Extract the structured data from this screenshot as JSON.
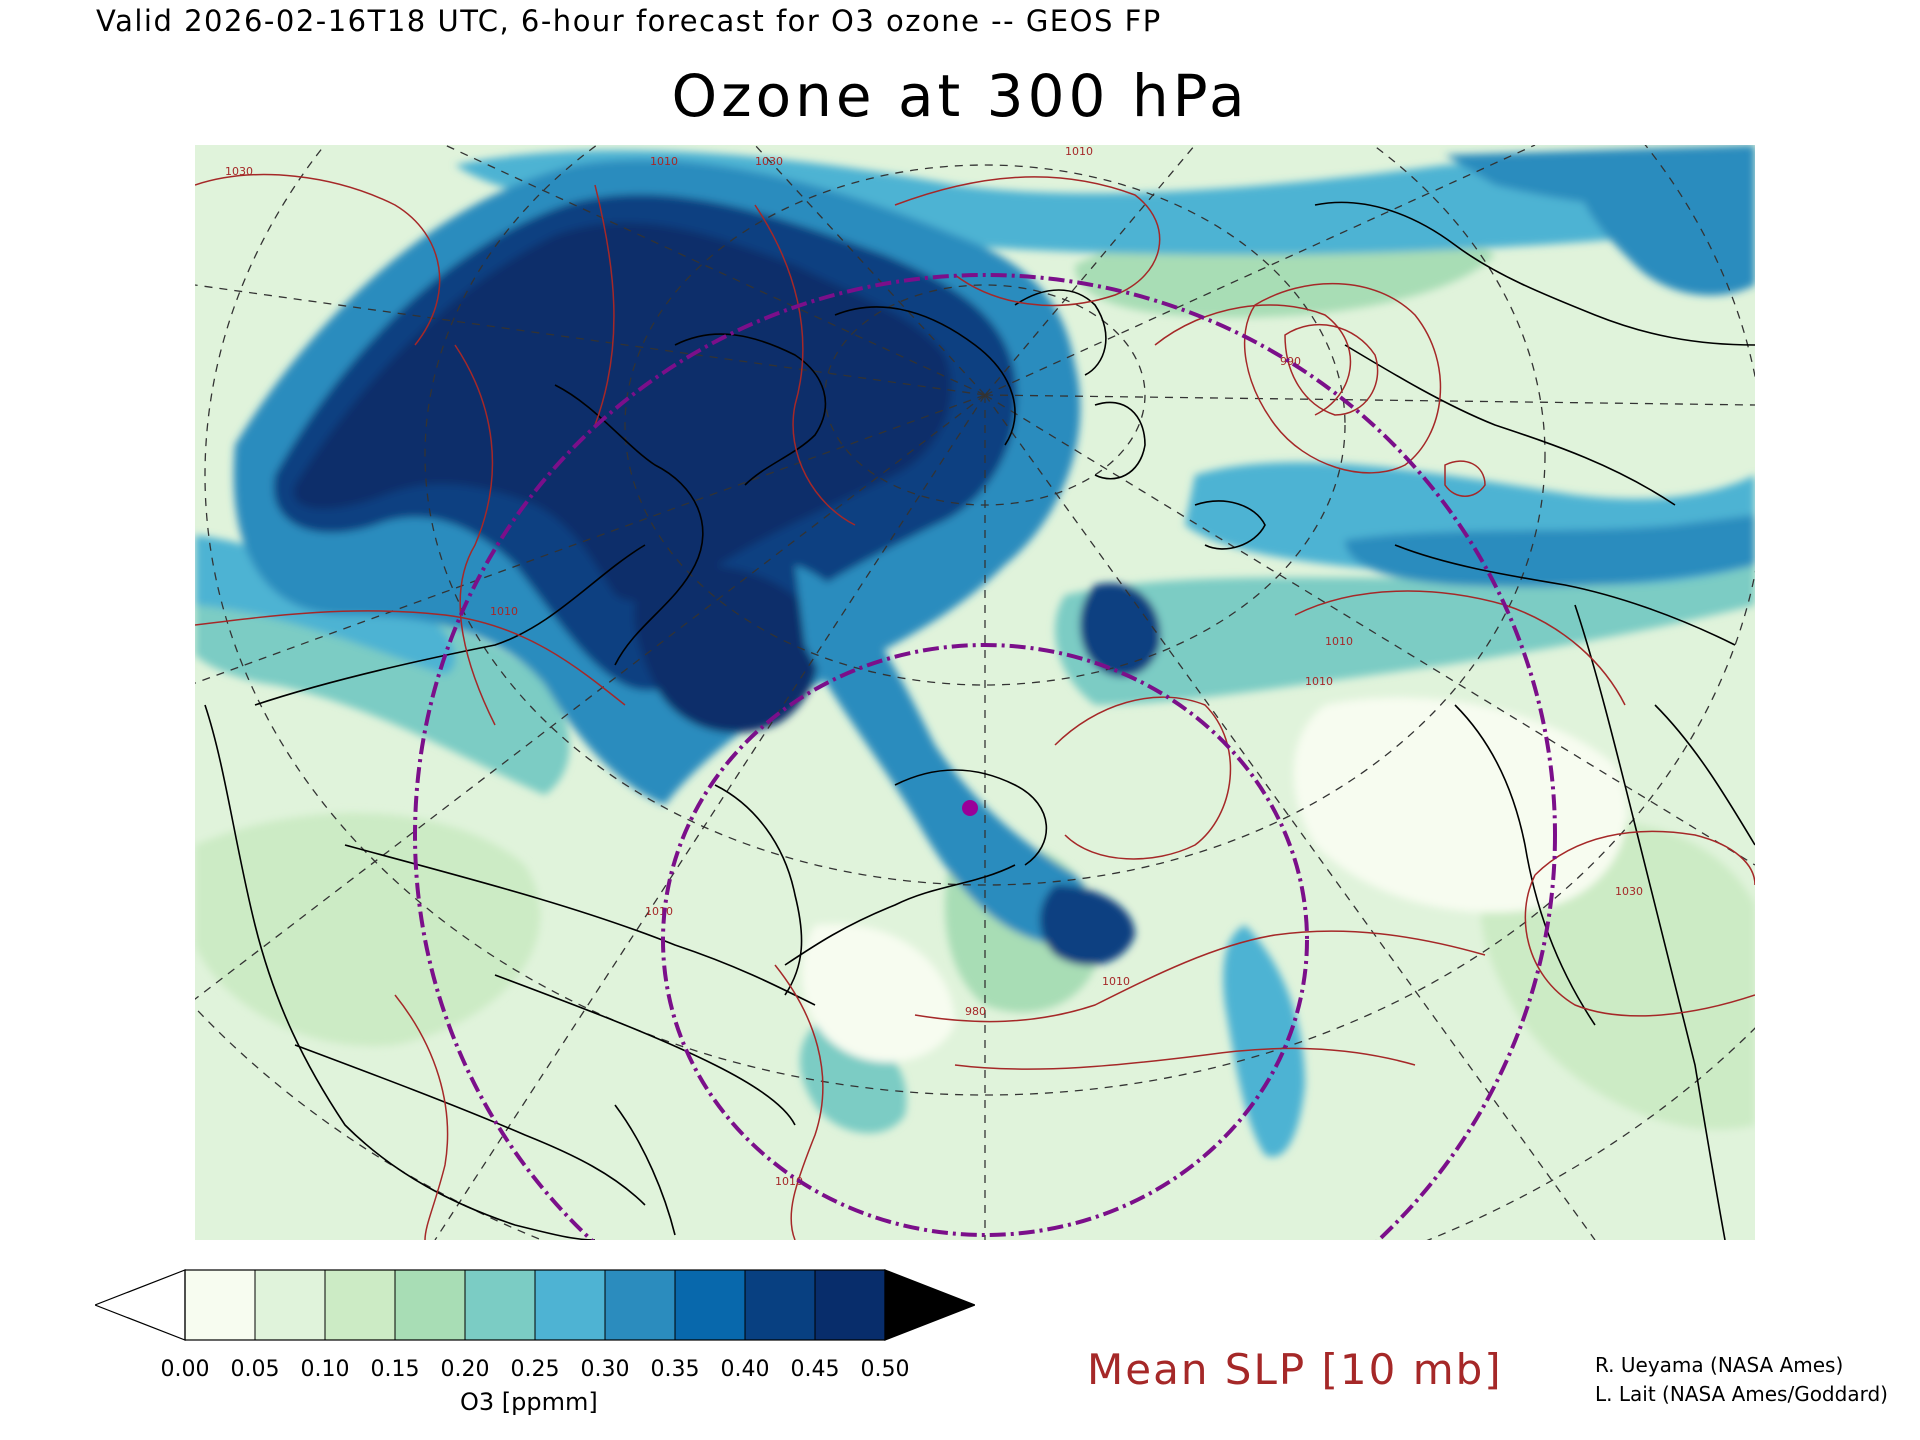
{
  "header": {
    "valid_line": "Valid 2026-02-16T18 UTC, 6-hour forecast for O3 ozone -- GEOS FP",
    "title": "Ozone at 300 hPa"
  },
  "map": {
    "projection": "polar-stereographic",
    "contour_labels": [
      "1030",
      "1010",
      "1010",
      "1030",
      "1010",
      "990",
      "1010",
      "1010",
      "1010",
      "1010",
      "1030",
      "980",
      "1010"
    ],
    "colors": {
      "land_boundaries": "#000000",
      "slp_contours": "#a52828",
      "vortex_edge": "#7b0f8a",
      "graticule": "#333333"
    },
    "marker": {
      "name": "purple-site-marker",
      "color": "#990099"
    }
  },
  "colorbar": {
    "label": "O3 [ppmm]",
    "ticks": [
      "0.00",
      "0.05",
      "0.10",
      "0.15",
      "0.20",
      "0.25",
      "0.30",
      "0.35",
      "0.40",
      "0.45",
      "0.50"
    ],
    "colors": [
      "#f7fcf0",
      "#e0f3db",
      "#ccebc5",
      "#a8ddb5",
      "#7bccc4",
      "#4eb3d3",
      "#2b8cbe",
      "#0868ac",
      "#084081",
      "#082d6b"
    ],
    "under_color": "#ffffff",
    "over_color": "#000000"
  },
  "legend": {
    "slp_label": "Mean SLP [10 mb]",
    "slp_color": "#a52828"
  },
  "credits": {
    "line1": "R. Ueyama (NASA Ames)",
    "line2": "L. Lait (NASA Ames/Goddard)"
  }
}
